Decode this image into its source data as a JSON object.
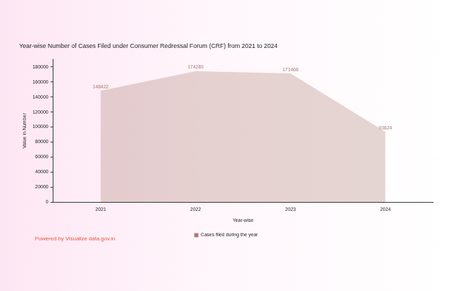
{
  "chart_data": {
    "type": "area",
    "title": "Year-wise Number of Cases Filed under Consumer Redressal Forum (CRF) from 2021 to 2024",
    "x_label": "Year-wise",
    "y_label": "Value in Number",
    "categories": [
      "2021",
      "2022",
      "2023",
      "2024"
    ],
    "series": [
      {
        "name": "Cases filed during the year",
        "color": "#a97a6e",
        "values": [
          148422,
          174280,
          171468,
          93624
        ]
      }
    ],
    "ylim": [
      0,
      190000
    ],
    "yticks": [
      0,
      20000,
      40000,
      60000,
      80000,
      100000,
      120000,
      140000,
      160000,
      180000
    ],
    "grid": false,
    "legend": "bottom",
    "data_labels": true,
    "annotations": [
      "Powered by Visualize data.gov.in"
    ]
  }
}
